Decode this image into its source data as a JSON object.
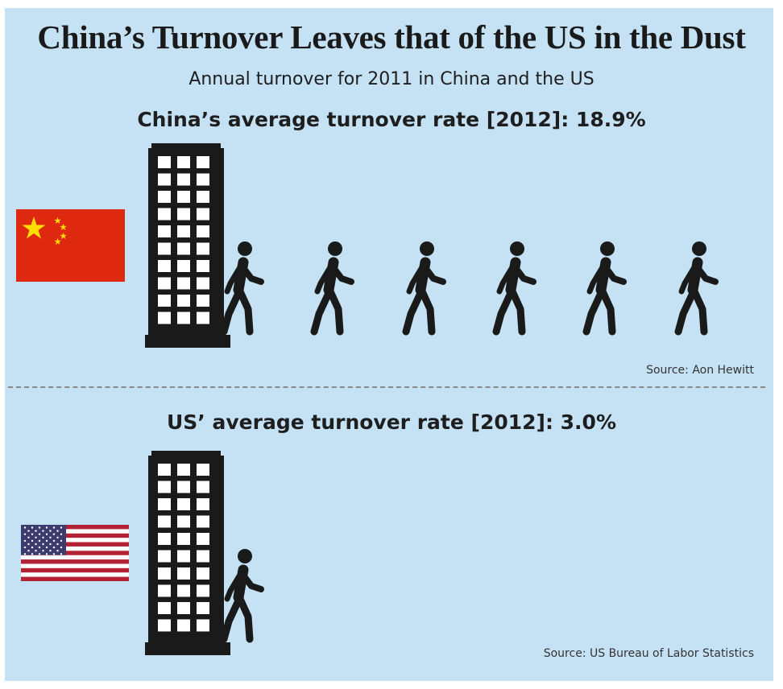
{
  "title": "China’s Turnover Leaves that of the US in the Dust",
  "subtitle": "Annual turnover for 2011 in China and the US",
  "china": {
    "rate_label": "China’s average turnover rate [2012]: 18.9%",
    "rate_value": 18.9,
    "walker_count": 6,
    "source": "Source: Aon Hewitt",
    "flag_icon": "china-flag-icon"
  },
  "us": {
    "rate_label": "US’ average turnover rate [2012]: 3.0%",
    "rate_value": 3.0,
    "walker_count": 1,
    "source": "Source: US Bureau of Labor Statistics",
    "flag_icon": "us-flag-icon"
  },
  "colors": {
    "background": "#c5e2f5",
    "icon": "#1a1a1a",
    "china_red": "#de2910",
    "china_yellow": "#ffde00",
    "us_red": "#b22234",
    "us_blue": "#3c3b6e"
  }
}
